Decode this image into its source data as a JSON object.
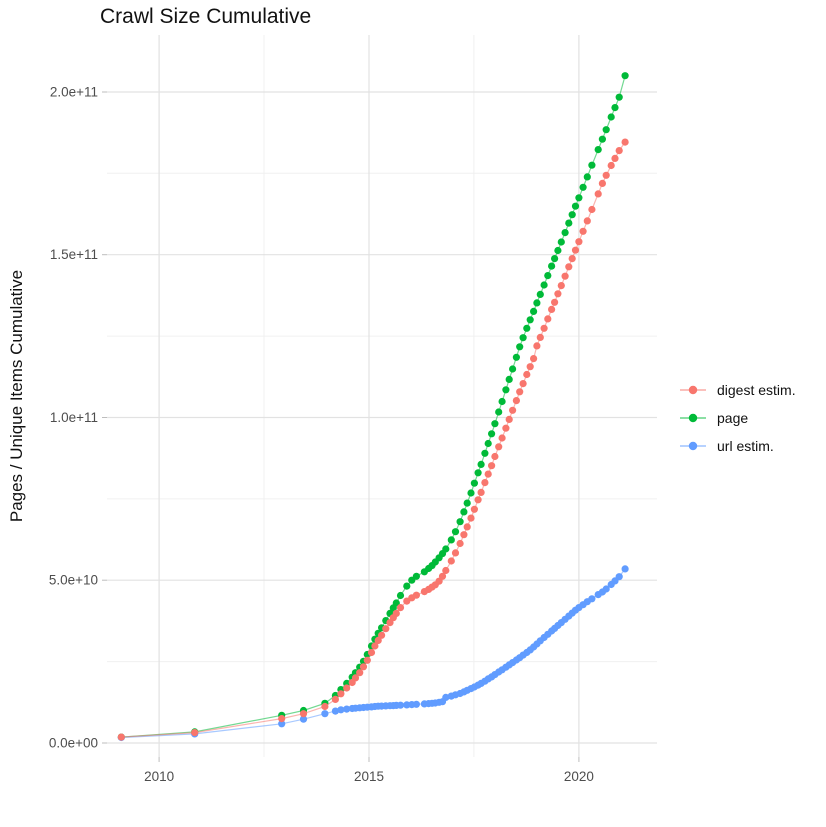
{
  "colors": {
    "grid_major": "#e2e2e2",
    "grid_minor": "#f0f0f0",
    "axis_text": "#4d4d4d",
    "tick_mark": "#bdbdbd",
    "title_text": "#111111"
  },
  "chart_data": {
    "type": "line",
    "title": "Crawl Size Cumulative",
    "xlabel": "",
    "ylabel": "Pages / Unique Items Cumulative",
    "legend_position": "right",
    "grid": true,
    "y_value_scale": "1e9",
    "xlim": [
      2008.76,
      2021.86
    ],
    "ylim_e9": [
      -4.3,
      217.5
    ],
    "x_ticks": [
      {
        "v": 2010,
        "label": "2010"
      },
      {
        "v": 2015,
        "label": "2015"
      },
      {
        "v": 2020,
        "label": "2020"
      }
    ],
    "x_minor": [
      2012.5,
      2017.5
    ],
    "y_ticks": [
      {
        "v": 0,
        "label": "0.0e+00"
      },
      {
        "v": 50,
        "label": "5.0e+10"
      },
      {
        "v": 100,
        "label": "1.0e+11"
      },
      {
        "v": 150,
        "label": "1.5e+11"
      },
      {
        "v": 200,
        "label": "2.0e+11"
      }
    ],
    "y_minor": [
      25,
      75,
      125,
      175
    ],
    "draw_order": [
      1,
      2,
      0
    ],
    "series": [
      {
        "name": "digest estim.",
        "color": "#F8766D",
        "points": [
          [
            2009.1,
            1.8
          ],
          [
            2010.85,
            3.2
          ],
          [
            2012.92,
            7.5
          ],
          [
            2013.44,
            9.0
          ],
          [
            2013.95,
            11.2
          ],
          [
            2014.2,
            13.4
          ],
          [
            2014.33,
            15.1
          ],
          [
            2014.47,
            16.9
          ],
          [
            2014.6,
            18.6
          ],
          [
            2014.68,
            20.0
          ],
          [
            2014.78,
            21.6
          ],
          [
            2014.87,
            23.4
          ],
          [
            2014.96,
            25.4
          ],
          [
            2015.06,
            27.8
          ],
          [
            2015.14,
            29.8
          ],
          [
            2015.22,
            31.5
          ],
          [
            2015.3,
            33.1
          ],
          [
            2015.4,
            35.1
          ],
          [
            2015.5,
            37.0
          ],
          [
            2015.58,
            38.5
          ],
          [
            2015.65,
            39.8
          ],
          [
            2015.75,
            41.6
          ],
          [
            2015.9,
            43.6
          ],
          [
            2016.02,
            44.6
          ],
          [
            2016.13,
            45.4
          ],
          [
            2016.32,
            46.5
          ],
          [
            2016.42,
            47.2
          ],
          [
            2016.5,
            47.9
          ],
          [
            2016.58,
            48.6
          ],
          [
            2016.67,
            49.7
          ],
          [
            2016.75,
            51.2
          ],
          [
            2016.83,
            53.0
          ],
          [
            2016.96,
            55.9
          ],
          [
            2017.06,
            58.4
          ],
          [
            2017.17,
            61.3
          ],
          [
            2017.26,
            64.0
          ],
          [
            2017.34,
            66.4
          ],
          [
            2017.43,
            69.1
          ],
          [
            2017.51,
            71.8
          ],
          [
            2017.6,
            74.7
          ],
          [
            2017.67,
            77.0
          ],
          [
            2017.76,
            80.0
          ],
          [
            2017.84,
            82.6
          ],
          [
            2017.92,
            85.2
          ],
          [
            2018.0,
            88.0
          ],
          [
            2018.09,
            91.0
          ],
          [
            2018.17,
            93.7
          ],
          [
            2018.26,
            96.7
          ],
          [
            2018.34,
            99.4
          ],
          [
            2018.42,
            102.2
          ],
          [
            2018.51,
            105.2
          ],
          [
            2018.59,
            107.9
          ],
          [
            2018.67,
            110.4
          ],
          [
            2018.76,
            113.2
          ],
          [
            2018.84,
            115.6
          ],
          [
            2018.92,
            118.1
          ],
          [
            2019.0,
            122.0
          ],
          [
            2019.08,
            124.6
          ],
          [
            2019.17,
            127.4
          ],
          [
            2019.26,
            130.3
          ],
          [
            2019.35,
            133.2
          ],
          [
            2019.42,
            135.4
          ],
          [
            2019.5,
            138.0
          ],
          [
            2019.58,
            140.5
          ],
          [
            2019.67,
            143.4
          ],
          [
            2019.76,
            146.3
          ],
          [
            2019.84,
            148.8
          ],
          [
            2019.92,
            151.4
          ],
          [
            2020.0,
            154.0
          ],
          [
            2020.1,
            157.2
          ],
          [
            2020.2,
            160.4
          ],
          [
            2020.31,
            163.9
          ],
          [
            2020.46,
            168.7
          ],
          [
            2020.56,
            171.9
          ],
          [
            2020.65,
            174.4
          ],
          [
            2020.77,
            177.4
          ],
          [
            2020.86,
            179.6
          ],
          [
            2020.96,
            182.0
          ],
          [
            2021.1,
            184.6
          ]
        ]
      },
      {
        "name": "page",
        "color": "#00BA38",
        "points": [
          [
            2009.1,
            1.8
          ],
          [
            2010.85,
            3.4
          ],
          [
            2012.92,
            8.5
          ],
          [
            2013.44,
            10.0
          ],
          [
            2013.95,
            12.2
          ],
          [
            2014.2,
            14.6
          ],
          [
            2014.33,
            16.4
          ],
          [
            2014.47,
            18.3
          ],
          [
            2014.6,
            20.2
          ],
          [
            2014.68,
            21.6
          ],
          [
            2014.78,
            23.3
          ],
          [
            2014.87,
            25.1
          ],
          [
            2014.96,
            27.2
          ],
          [
            2015.06,
            29.8
          ],
          [
            2015.14,
            31.9
          ],
          [
            2015.22,
            33.7
          ],
          [
            2015.3,
            35.4
          ],
          [
            2015.4,
            37.6
          ],
          [
            2015.5,
            39.8
          ],
          [
            2015.58,
            41.5
          ],
          [
            2015.65,
            43.0
          ],
          [
            2015.75,
            45.3
          ],
          [
            2015.9,
            48.2
          ],
          [
            2016.02,
            50.0
          ],
          [
            2016.13,
            51.2
          ],
          [
            2016.32,
            52.6
          ],
          [
            2016.42,
            53.6
          ],
          [
            2016.5,
            54.5
          ],
          [
            2016.58,
            55.6
          ],
          [
            2016.67,
            56.9
          ],
          [
            2016.75,
            58.2
          ],
          [
            2016.83,
            59.6
          ],
          [
            2016.96,
            62.4
          ],
          [
            2017.06,
            64.9
          ],
          [
            2017.17,
            68.0
          ],
          [
            2017.26,
            71.0
          ],
          [
            2017.34,
            73.7
          ],
          [
            2017.43,
            76.8
          ],
          [
            2017.51,
            79.8
          ],
          [
            2017.6,
            83.0
          ],
          [
            2017.67,
            85.6
          ],
          [
            2017.76,
            89.0
          ],
          [
            2017.84,
            92.0
          ],
          [
            2017.92,
            95.0
          ],
          [
            2018.0,
            98.1
          ],
          [
            2018.09,
            101.7
          ],
          [
            2018.17,
            104.9
          ],
          [
            2018.26,
            108.5
          ],
          [
            2018.34,
            111.7
          ],
          [
            2018.42,
            114.9
          ],
          [
            2018.51,
            118.5
          ],
          [
            2018.59,
            121.7
          ],
          [
            2018.67,
            124.5
          ],
          [
            2018.76,
            127.4
          ],
          [
            2018.84,
            130.0
          ],
          [
            2018.92,
            132.6
          ],
          [
            2019.0,
            135.2
          ],
          [
            2019.08,
            137.8
          ],
          [
            2019.17,
            140.7
          ],
          [
            2019.26,
            143.6
          ],
          [
            2019.35,
            146.5
          ],
          [
            2019.42,
            148.8
          ],
          [
            2019.5,
            151.3
          ],
          [
            2019.58,
            153.9
          ],
          [
            2019.67,
            156.8
          ],
          [
            2019.76,
            159.7
          ],
          [
            2019.84,
            162.3
          ],
          [
            2019.92,
            164.9
          ],
          [
            2020.0,
            167.5
          ],
          [
            2020.1,
            170.7
          ],
          [
            2020.2,
            173.9
          ],
          [
            2020.31,
            177.5
          ],
          [
            2020.46,
            182.3
          ],
          [
            2020.56,
            185.5
          ],
          [
            2020.65,
            188.4
          ],
          [
            2020.77,
            192.3
          ],
          [
            2020.86,
            195.2
          ],
          [
            2020.96,
            198.4
          ],
          [
            2021.1,
            205.0
          ]
        ]
      },
      {
        "name": "url estim.",
        "color": "#619CFF",
        "points": [
          [
            2009.1,
            1.7
          ],
          [
            2010.85,
            2.8
          ],
          [
            2012.92,
            5.9
          ],
          [
            2013.44,
            7.3
          ],
          [
            2013.95,
            9.0
          ],
          [
            2014.2,
            9.8
          ],
          [
            2014.33,
            10.2
          ],
          [
            2014.47,
            10.4
          ],
          [
            2014.6,
            10.6
          ],
          [
            2014.68,
            10.7
          ],
          [
            2014.78,
            10.8
          ],
          [
            2014.87,
            10.9
          ],
          [
            2014.96,
            11.0
          ],
          [
            2015.06,
            11.1
          ],
          [
            2015.14,
            11.2
          ],
          [
            2015.22,
            11.3
          ],
          [
            2015.3,
            11.35
          ],
          [
            2015.4,
            11.4
          ],
          [
            2015.5,
            11.45
          ],
          [
            2015.58,
            11.5
          ],
          [
            2015.65,
            11.55
          ],
          [
            2015.75,
            11.6
          ],
          [
            2015.9,
            11.7
          ],
          [
            2016.02,
            11.8
          ],
          [
            2016.13,
            11.9
          ],
          [
            2016.32,
            12.0
          ],
          [
            2016.42,
            12.1
          ],
          [
            2016.5,
            12.2
          ],
          [
            2016.58,
            12.3
          ],
          [
            2016.67,
            12.5
          ],
          [
            2016.75,
            12.7
          ],
          [
            2016.83,
            14.0
          ],
          [
            2016.96,
            14.4
          ],
          [
            2017.06,
            14.8
          ],
          [
            2017.17,
            15.2
          ],
          [
            2017.26,
            15.7
          ],
          [
            2017.34,
            16.2
          ],
          [
            2017.43,
            16.7
          ],
          [
            2017.51,
            17.2
          ],
          [
            2017.6,
            17.8
          ],
          [
            2017.67,
            18.3
          ],
          [
            2017.76,
            19.0
          ],
          [
            2017.84,
            19.7
          ],
          [
            2017.92,
            20.3
          ],
          [
            2018.0,
            21.0
          ],
          [
            2018.09,
            21.8
          ],
          [
            2018.17,
            22.5
          ],
          [
            2018.26,
            23.3
          ],
          [
            2018.34,
            24.0
          ],
          [
            2018.42,
            24.7
          ],
          [
            2018.51,
            25.5
          ],
          [
            2018.59,
            26.2
          ],
          [
            2018.67,
            27.0
          ],
          [
            2018.76,
            27.8
          ],
          [
            2018.84,
            28.6
          ],
          [
            2018.92,
            29.5
          ],
          [
            2019.0,
            30.4
          ],
          [
            2019.08,
            31.4
          ],
          [
            2019.17,
            32.4
          ],
          [
            2019.26,
            33.4
          ],
          [
            2019.35,
            34.4
          ],
          [
            2019.42,
            35.2
          ],
          [
            2019.5,
            36.1
          ],
          [
            2019.58,
            37.0
          ],
          [
            2019.67,
            38.0
          ],
          [
            2019.76,
            39.0
          ],
          [
            2019.84,
            39.9
          ],
          [
            2019.92,
            40.8
          ],
          [
            2020.0,
            41.6
          ],
          [
            2020.1,
            42.5
          ],
          [
            2020.2,
            43.4
          ],
          [
            2020.31,
            44.3
          ],
          [
            2020.46,
            45.6
          ],
          [
            2020.56,
            46.4
          ],
          [
            2020.65,
            47.3
          ],
          [
            2020.77,
            48.7
          ],
          [
            2020.86,
            49.8
          ],
          [
            2020.96,
            51.1
          ],
          [
            2021.1,
            53.5
          ]
        ]
      }
    ]
  }
}
